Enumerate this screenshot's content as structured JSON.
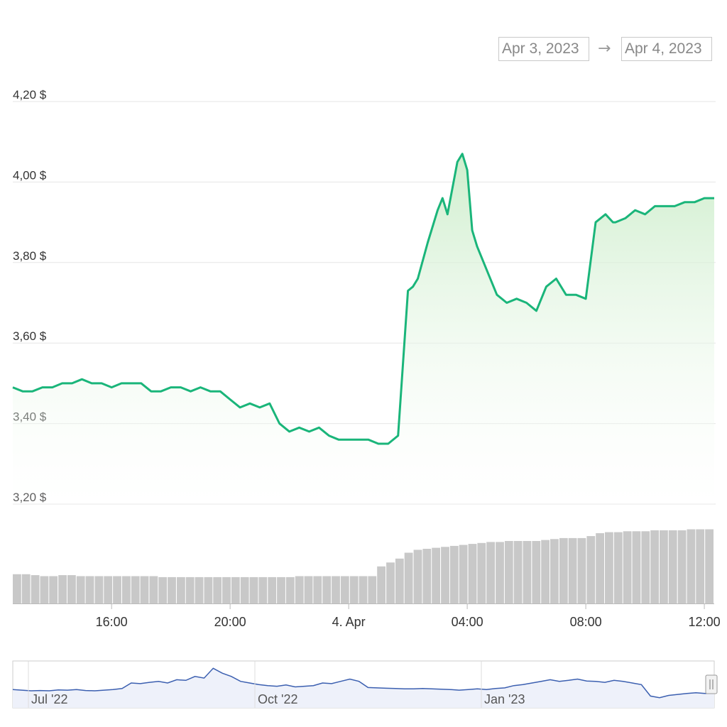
{
  "range_selector": {
    "from": "Apr 3, 2023",
    "arrow": "→",
    "to": "Apr 4, 2023"
  },
  "colors": {
    "price_line": "#1ab57a",
    "price_fill_top": "#c9ecc7",
    "volume_bar": "#c8c8c8",
    "navigator_line": "#3b5fb0",
    "navigator_fill": "#eef1fa",
    "grid": "#e6e6e6"
  },
  "chart_data": {
    "type": "line",
    "title": "",
    "xlabel": "",
    "ylabel": "",
    "x_range": [
      "Apr 3 12:40",
      "Apr 4 12:20"
    ],
    "ylim": [
      3.2,
      4.2
    ],
    "y_ticks": [
      {
        "value": 4.2,
        "label": "4,20 $"
      },
      {
        "value": 4.0,
        "label": "4,00 $"
      },
      {
        "value": 3.8,
        "label": "3,80 $"
      },
      {
        "value": 3.6,
        "label": "3,60 $"
      },
      {
        "value": 3.4,
        "label": "3,40 $"
      },
      {
        "value": 3.2,
        "label": "3,20 $"
      }
    ],
    "x_ticks": [
      {
        "hour": 16,
        "label": "16:00"
      },
      {
        "hour": 20,
        "label": "20:00"
      },
      {
        "hour": 24,
        "label": "4. Apr"
      },
      {
        "hour": 28,
        "label": "04:00"
      },
      {
        "hour": 32,
        "label": "08:00"
      },
      {
        "hour": 36,
        "label": "12:00"
      }
    ],
    "grid": true,
    "series": [
      {
        "x": [
          "12:40",
          "13:00",
          "13:20",
          "13:40",
          "14:00",
          "14:20",
          "14:40",
          "15:00",
          "15:20",
          "15:40",
          "16:00",
          "16:20",
          "16:40",
          "17:00",
          "17:20",
          "17:40",
          "18:00",
          "18:20",
          "18:40",
          "19:00",
          "19:20",
          "19:40",
          "20:00",
          "20:20",
          "20:40",
          "21:00",
          "21:20",
          "21:40",
          "22:00",
          "22:20",
          "22:40",
          "23:00",
          "23:20",
          "23:40",
          "00:00",
          "00:20",
          "00:40",
          "01:00",
          "01:20",
          "01:40",
          "02:00",
          "02:10",
          "02:20",
          "02:40",
          "03:00",
          "03:10",
          "03:20",
          "03:40",
          "03:50",
          "04:00",
          "04:10",
          "04:20",
          "04:40",
          "05:00",
          "05:20",
          "05:40",
          "06:00",
          "06:20",
          "06:40",
          "07:00",
          "07:20",
          "07:40",
          "08:00",
          "08:20",
          "08:40",
          "08:55",
          "09:00",
          "09:20",
          "09:40",
          "10:00",
          "10:20",
          "10:40",
          "11:00",
          "11:20",
          "11:40",
          "12:00",
          "12:20"
        ],
        "values": [
          3.49,
          3.48,
          3.48,
          3.49,
          3.49,
          3.5,
          3.5,
          3.51,
          3.5,
          3.5,
          3.49,
          3.5,
          3.5,
          3.5,
          3.48,
          3.48,
          3.49,
          3.49,
          3.48,
          3.49,
          3.48,
          3.48,
          3.46,
          3.44,
          3.45,
          3.44,
          3.45,
          3.4,
          3.38,
          3.39,
          3.38,
          3.39,
          3.37,
          3.36,
          3.36,
          3.36,
          3.36,
          3.35,
          3.35,
          3.37,
          3.73,
          3.74,
          3.76,
          3.85,
          3.93,
          3.96,
          3.92,
          4.05,
          4.07,
          4.03,
          3.88,
          3.84,
          3.78,
          3.72,
          3.7,
          3.71,
          3.7,
          3.68,
          3.74,
          3.76,
          3.72,
          3.72,
          3.71,
          3.9,
          3.92,
          3.9,
          3.9,
          3.91,
          3.93,
          3.92,
          3.94,
          3.94,
          3.94,
          3.95,
          3.95,
          3.96,
          3.96
        ]
      }
    ],
    "volume": {
      "note": "relative cumulative volume bars",
      "values": [
        0.3,
        0.3,
        0.29,
        0.28,
        0.28,
        0.29,
        0.29,
        0.28,
        0.28,
        0.28,
        0.28,
        0.28,
        0.28,
        0.28,
        0.28,
        0.28,
        0.27,
        0.27,
        0.27,
        0.27,
        0.27,
        0.27,
        0.27,
        0.27,
        0.27,
        0.27,
        0.27,
        0.27,
        0.27,
        0.27,
        0.27,
        0.28,
        0.28,
        0.28,
        0.28,
        0.28,
        0.28,
        0.28,
        0.28,
        0.28,
        0.38,
        0.42,
        0.46,
        0.52,
        0.55,
        0.56,
        0.57,
        0.58,
        0.59,
        0.6,
        0.61,
        0.62,
        0.63,
        0.63,
        0.64,
        0.64,
        0.64,
        0.64,
        0.65,
        0.66,
        0.67,
        0.67,
        0.67,
        0.69,
        0.72,
        0.73,
        0.73,
        0.74,
        0.74,
        0.74,
        0.75,
        0.75,
        0.75,
        0.75,
        0.76,
        0.76,
        0.76
      ]
    },
    "navigator": {
      "labels": [
        "Jul '22",
        "Oct '22",
        "Jan '23"
      ],
      "values": [
        0.3,
        0.28,
        0.26,
        0.27,
        0.26,
        0.29,
        0.28,
        0.3,
        0.27,
        0.26,
        0.28,
        0.3,
        0.33,
        0.5,
        0.48,
        0.52,
        0.55,
        0.5,
        0.6,
        0.58,
        0.7,
        0.65,
        0.95,
        0.8,
        0.7,
        0.55,
        0.5,
        0.45,
        0.42,
        0.4,
        0.44,
        0.38,
        0.4,
        0.42,
        0.5,
        0.48,
        0.55,
        0.62,
        0.55,
        0.36,
        0.35,
        0.34,
        0.33,
        0.32,
        0.32,
        0.33,
        0.32,
        0.31,
        0.3,
        0.28,
        0.3,
        0.32,
        0.3,
        0.33,
        0.35,
        0.42,
        0.45,
        0.5,
        0.55,
        0.6,
        0.55,
        0.58,
        0.62,
        0.56,
        0.55,
        0.52,
        0.58,
        0.55,
        0.5,
        0.45,
        0.1,
        0.05,
        0.12,
        0.15,
        0.18,
        0.2,
        0.18,
        0.2
      ]
    }
  }
}
